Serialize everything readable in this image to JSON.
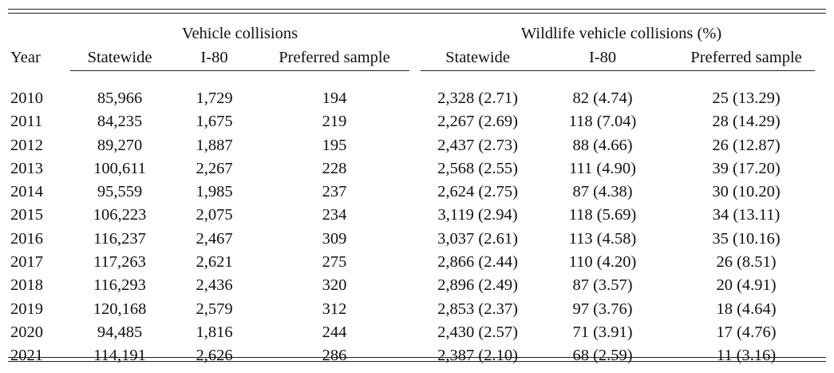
{
  "table": {
    "group_headers": {
      "vehicle": "Vehicle collisions",
      "wildlife": "Wildlife vehicle collisions (%)"
    },
    "columns": [
      "Year",
      "Statewide",
      "I-80",
      "Preferred sample",
      "Statewide",
      "I-80",
      "Preferred sample"
    ],
    "rows": [
      [
        "2010",
        "85,966",
        "1,729",
        "194",
        "2,328 (2.71)",
        "82 (4.74)",
        "25 (13.29)"
      ],
      [
        "2011",
        "84,235",
        "1,675",
        "219",
        "2,267 (2.69)",
        "118 (7.04)",
        "28 (14.29)"
      ],
      [
        "2012",
        "89,270",
        "1,887",
        "195",
        "2,437 (2.73)",
        "88 (4.66)",
        "26 (12.87)"
      ],
      [
        "2013",
        "100,611",
        "2,267",
        "228",
        "2,568 (2.55)",
        "111 (4.90)",
        "39 (17.20)"
      ],
      [
        "2014",
        "95,559",
        "1,985",
        "237",
        "2,624 (2.75)",
        "87 (4.38)",
        "30 (10.20)"
      ],
      [
        "2015",
        "106,223",
        "2,075",
        "234",
        "3,119 (2.94)",
        "118 (5.69)",
        "34 (13.11)"
      ],
      [
        "2016",
        "116,237",
        "2,467",
        "309",
        "3,037 (2.61)",
        "113 (4.58)",
        "35 (10.16)"
      ],
      [
        "2017",
        "117,263",
        "2,621",
        "275",
        "2,866 (2.44)",
        "110 (4.20)",
        "26 (8.51)"
      ],
      [
        "2018",
        "116,293",
        "2,436",
        "320",
        "2,896 (2.49)",
        "87 (3.57)",
        "20 (4.91)"
      ],
      [
        "2019",
        "120,168",
        "2,579",
        "312",
        "2,853 (2.37)",
        "97 (3.76)",
        "18 (4.64)"
      ],
      [
        "2020",
        "94,485",
        "1,816",
        "244",
        "2,430 (2.57)",
        "71 (3.91)",
        "17 (4.76)"
      ],
      [
        "2021",
        "114,191",
        "2,626",
        "286",
        "2,387 (2.10)",
        "68 (2.59)",
        "11 (3.16)"
      ]
    ]
  }
}
